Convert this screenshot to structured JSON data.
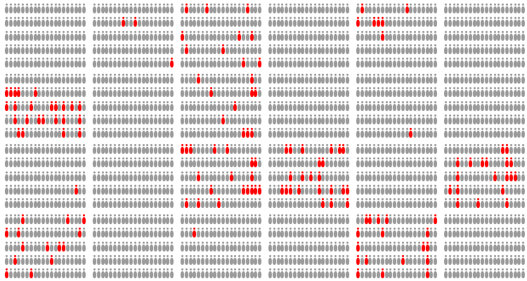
{
  "colors": {
    "neutral": "#9b9b9b",
    "highlight": "#ff0000",
    "background": "#ffffff"
  },
  "icon": "person-icon",
  "layout": {
    "block_cols": 6,
    "block_rows": 4,
    "people_per_row": 20,
    "rows_per_block": 5
  },
  "highlighted": [
    [
      [],
      [],
      [],
      [],
      []
    ],
    [
      [],
      [
        7,
        10
      ],
      [],
      [],
      [
        19
      ]
    ],
    [
      [
        1,
        6,
        16
      ],
      [],
      [
        0,
        14,
        17
      ],
      [
        1,
        10
      ],
      [
        15,
        19
      ]
    ],
    [
      [],
      [],
      [],
      [],
      []
    ],
    [
      [
        1,
        12
      ],
      [
        0,
        4,
        5,
        6
      ],
      [
        6
      ],
      [],
      []
    ],
    [
      [],
      [],
      [],
      [],
      []
    ],
    [
      [],
      [
        0,
        1,
        2,
        3,
        7
      ],
      [
        0,
        2,
        6,
        11,
        12,
        14,
        16,
        18
      ],
      [
        2,
        5,
        8,
        9,
        12,
        14,
        18
      ],
      [
        3,
        4,
        14,
        18
      ]
    ],
    [
      [],
      [],
      [],
      [],
      []
    ],
    [
      [
        4,
        17
      ],
      [
        7,
        17,
        18
      ],
      [
        13
      ],
      [
        10
      ],
      [
        15,
        16,
        17
      ]
    ],
    [
      [],
      [],
      [],
      [],
      []
    ],
    [
      [],
      [],
      [],
      [],
      [
        13
      ]
    ],
    [
      [],
      [],
      [],
      [],
      []
    ],
    [
      [],
      [],
      [],
      [
        17
      ],
      []
    ],
    [
      [],
      [],
      [],
      [],
      []
    ],
    [
      [
        0,
        1,
        2,
        8,
        11
      ],
      [
        17,
        18
      ],
      [
        4,
        12,
        17
      ],
      [
        7,
        15,
        16,
        17,
        18,
        19
      ],
      [
        1,
        4,
        9
      ]
    ],
    [
      [
        4,
        5,
        8,
        15,
        17,
        18
      ],
      [
        12,
        13
      ],
      [
        5,
        8,
        10,
        12
      ],
      [
        3,
        4,
        5,
        7,
        12,
        15,
        18,
        19
      ],
      [
        13,
        15,
        19
      ]
    ],
    [
      [],
      [],
      [],
      [],
      []
    ],
    [
      [
        14,
        15
      ],
      [
        3,
        6,
        9,
        10,
        15,
        16
      ],
      [
        3,
        12,
        15,
        16,
        17
      ],
      [
        1,
        3,
        14
      ],
      [
        3,
        8,
        15
      ]
    ],
    [
      [
        4,
        15,
        19
      ],
      [
        0,
        3,
        18
      ],
      [
        4,
        10,
        13,
        14
      ],
      [
        2,
        11
      ],
      [
        0,
        6
      ]
    ],
    [
      [],
      [],
      [],
      [],
      []
    ],
    [
      [],
      [
        3
      ],
      [],
      [],
      []
    ],
    [
      [],
      [],
      [],
      [],
      []
    ],
    [
      [
        2,
        3,
        5,
        7,
        19
      ],
      [
        0,
        6,
        17
      ],
      [
        0,
        16,
        17
      ],
      [
        0,
        2,
        11,
        17
      ],
      [
        0,
        6,
        17
      ]
    ],
    [
      [],
      [],
      [],
      [],
      []
    ]
  ]
}
